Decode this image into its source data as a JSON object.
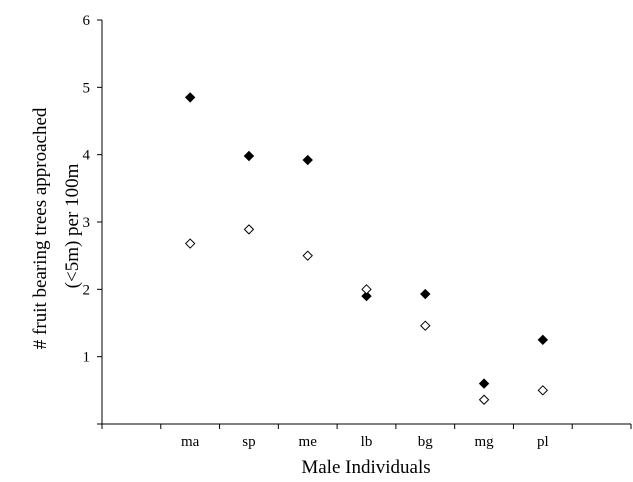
{
  "chart_data": {
    "type": "scatter",
    "title": "",
    "xlabel": "Male Individuals",
    "ylabel_lines": [
      "# fruit bearing trees approached",
      "(<5m) per 100m"
    ],
    "categories": [
      "ma",
      "sp",
      "me",
      "lb",
      "bg",
      "mg",
      "pl"
    ],
    "ylim": [
      0,
      6
    ],
    "yticks": [
      "1",
      "2",
      "3",
      "4",
      "5",
      "6"
    ],
    "grid": false,
    "legend": "none",
    "series": [
      {
        "marker": "filled-diamond",
        "color": "#000000",
        "values": [
          4.85,
          3.98,
          3.92,
          1.9,
          1.93,
          0.6,
          1.25
        ]
      },
      {
        "marker": "open-diamond",
        "color": "#000000",
        "values": [
          2.68,
          2.89,
          2.5,
          2.0,
          1.46,
          0.36,
          0.5
        ]
      }
    ]
  }
}
